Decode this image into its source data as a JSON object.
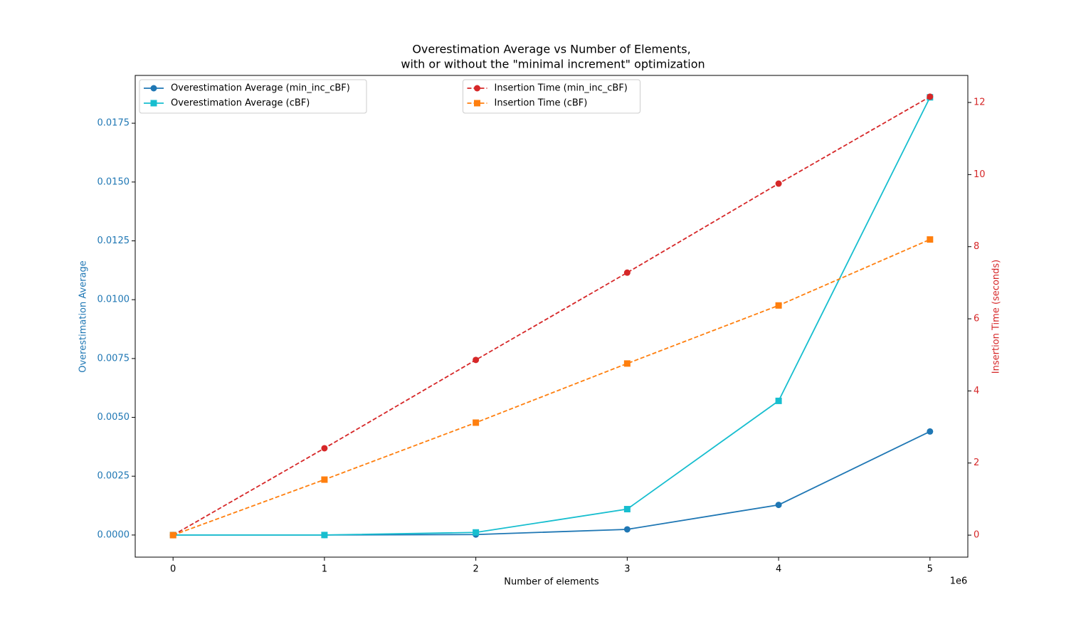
{
  "chart_data": {
    "type": "line",
    "title": [
      "Overestimation Average vs Number of Elements,",
      "with or without the \"minimal increment\" optimization"
    ],
    "xlabel": "Number of elements",
    "ylabel": "Overestimation Average",
    "y2label": "Insertion Time (seconds)",
    "x_multiplier": "1e6",
    "x": [
      0,
      1,
      2,
      3,
      4,
      5
    ],
    "xlim": [
      -0.25,
      5.25
    ],
    "xticks": [
      0,
      1,
      2,
      3,
      4,
      5
    ],
    "ylim": [
      -0.00094,
      0.01953
    ],
    "yticks": [
      {
        "value": 0,
        "label": "0.0000"
      },
      {
        "value": 0.0025,
        "label": "0.0025"
      },
      {
        "value": 0.005,
        "label": "0.0050"
      },
      {
        "value": 0.0075,
        "label": "0.0075"
      },
      {
        "value": 0.01,
        "label": "0.0100"
      },
      {
        "value": 0.0125,
        "label": "0.0125"
      },
      {
        "value": 0.015,
        "label": "0.0150"
      },
      {
        "value": 0.0175,
        "label": "0.0175"
      }
    ],
    "ylabel_color": "#1f77b4",
    "y2lim": [
      -0.61,
      12.75
    ],
    "y2ticks": [
      0,
      2,
      4,
      6,
      8,
      10,
      12
    ],
    "y2label_color": "#d62728",
    "series": [
      {
        "name": "Overestimation Average (min_inc_cBF)",
        "color": "#1f77b4",
        "marker": "circle",
        "linestyle": "solid",
        "axis": "y",
        "values": [
          0,
          0,
          2e-05,
          0.00024,
          0.00128,
          0.0044
        ]
      },
      {
        "name": "Overestimation Average (cBF)",
        "color": "#17becf",
        "marker": "square",
        "linestyle": "solid",
        "axis": "y",
        "values": [
          0,
          0,
          0.00011,
          0.0011,
          0.0057,
          0.0186
        ]
      },
      {
        "name": "Insertion Time (min_inc_cBF)",
        "color": "#d62728",
        "marker": "circle",
        "linestyle": "dashed",
        "axis": "y2",
        "values": [
          0,
          2.41,
          4.86,
          7.28,
          9.75,
          12.16
        ]
      },
      {
        "name": "Insertion Time (cBF)",
        "color": "#ff7f0e",
        "marker": "square",
        "linestyle": "dashed",
        "axis": "y2",
        "values": [
          0,
          1.54,
          3.12,
          4.76,
          6.37,
          8.2
        ]
      }
    ],
    "legend": "upper left",
    "legend2": "upper center"
  }
}
